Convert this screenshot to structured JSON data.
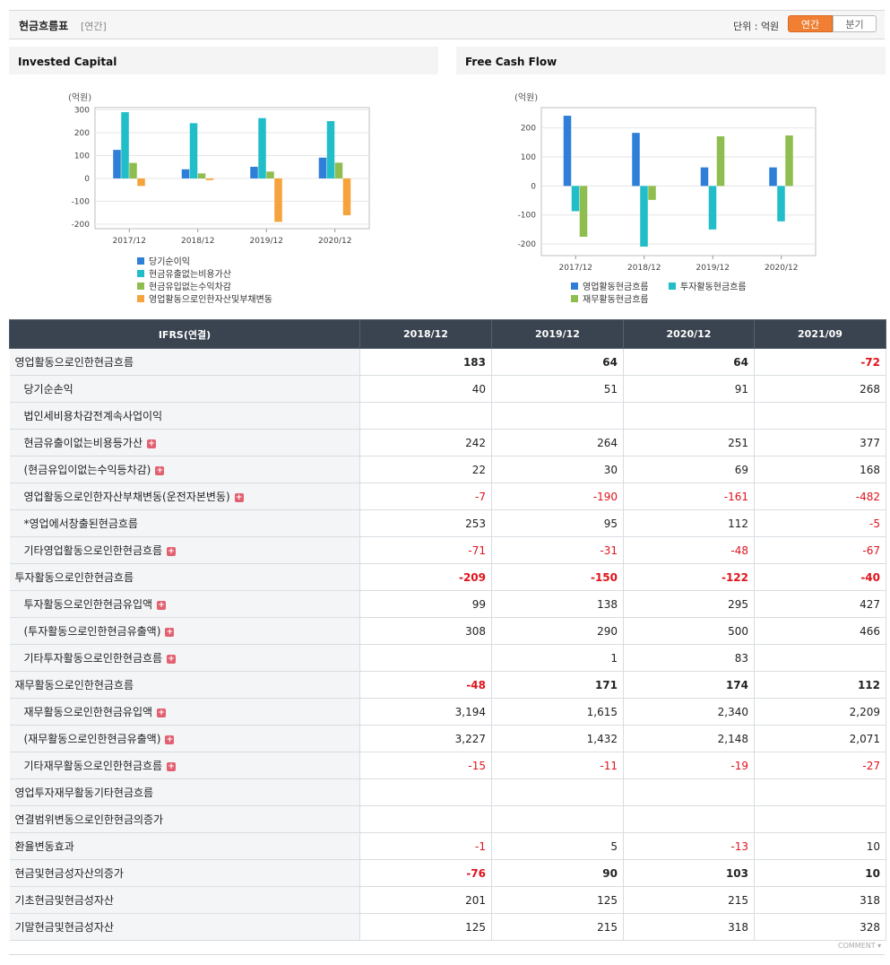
{
  "header": {
    "title": "현금흐름표",
    "period": "[연간]",
    "unit_label": "단위 : 억원",
    "tab_annual": "연간",
    "tab_quarter": "분기"
  },
  "colors": {
    "blue": "#2f7ed8",
    "teal": "#21bec9",
    "green": "#8fbd4f",
    "orange": "#f5a33a",
    "negative": "#e0131c",
    "header_bg": "#3a4450"
  },
  "charts": {
    "invested": {
      "title": "Invested Capital",
      "unit": "(억원)",
      "chart_data": {
        "type": "bar",
        "categories": [
          "2017/12",
          "2018/12",
          "2019/12",
          "2020/12"
        ],
        "ylim": [
          -220,
          310
        ],
        "yticks": [
          300,
          200,
          100,
          0,
          -100,
          -200
        ],
        "series": [
          {
            "name": "당기순이익",
            "color": "#2f7ed8",
            "values": [
              125,
              40,
              51,
              91
            ]
          },
          {
            "name": "현금유출없는비용가산",
            "color": "#21bec9",
            "values": [
              290,
              242,
              264,
              251
            ]
          },
          {
            "name": "현금유입없는수익차감",
            "color": "#8fbd4f",
            "values": [
              68,
              22,
              30,
              69
            ]
          },
          {
            "name": "영업활동으로인한자산및부채변동",
            "color": "#f5a33a",
            "values": [
              -33,
              -7,
              -190,
              -161
            ]
          }
        ],
        "grid": true,
        "legend": "bottom"
      }
    },
    "fcf": {
      "title": "Free Cash Flow",
      "unit": "(억원)",
      "chart_data": {
        "type": "bar",
        "categories": [
          "2017/12",
          "2018/12",
          "2019/12",
          "2020/12"
        ],
        "ylim": [
          -240,
          270
        ],
        "yticks": [
          200,
          100,
          0,
          -100,
          -200
        ],
        "series": [
          {
            "name": "영업활동현금흐름",
            "color": "#2f7ed8",
            "values": [
              242,
              183,
              64,
              64
            ]
          },
          {
            "name": "투자활동현금흐름",
            "color": "#21bec9",
            "values": [
              -87,
              -209,
              -150,
              -122
            ]
          },
          {
            "name": "재무활동현금흐름",
            "color": "#8fbd4f",
            "values": [
              -175,
              -48,
              171,
              174
            ]
          }
        ],
        "grid": true,
        "legend": "bottom"
      }
    }
  },
  "table": {
    "header": [
      "IFRS(연결)",
      "2018/12",
      "2019/12",
      "2020/12",
      "2021/09"
    ],
    "rows": [
      {
        "label": "영업활동으로인한현금흐름",
        "level": "main",
        "plus": false,
        "values": [
          "183",
          "64",
          "64",
          "-72"
        ]
      },
      {
        "label": "당기순손익",
        "level": "sub",
        "plus": false,
        "values": [
          "40",
          "51",
          "91",
          "268"
        ]
      },
      {
        "label": "법인세비용차감전계속사업이익",
        "level": "sub",
        "plus": false,
        "values": [
          "",
          "",
          "",
          ""
        ]
      },
      {
        "label": "현금유출이없는비용등가산",
        "level": "sub",
        "plus": true,
        "values": [
          "242",
          "264",
          "251",
          "377"
        ]
      },
      {
        "label": "(현금유입이없는수익등차감)",
        "level": "sub",
        "plus": true,
        "values": [
          "22",
          "30",
          "69",
          "168"
        ]
      },
      {
        "label": "영업활동으로인한자산부채변동(운전자본변동)",
        "level": "sub",
        "plus": true,
        "values": [
          "-7",
          "-190",
          "-161",
          "-482"
        ]
      },
      {
        "label": "*영업에서창출된현금흐름",
        "level": "sub",
        "plus": false,
        "values": [
          "253",
          "95",
          "112",
          "-5"
        ]
      },
      {
        "label": "기타영업활동으로인한현금흐름",
        "level": "sub",
        "plus": true,
        "values": [
          "-71",
          "-31",
          "-48",
          "-67"
        ]
      },
      {
        "label": "투자활동으로인한현금흐름",
        "level": "main",
        "plus": false,
        "values": [
          "-209",
          "-150",
          "-122",
          "-40"
        ]
      },
      {
        "label": "투자활동으로인한현금유입액",
        "level": "sub",
        "plus": true,
        "values": [
          "99",
          "138",
          "295",
          "427"
        ]
      },
      {
        "label": "(투자활동으로인한현금유출액)",
        "level": "sub",
        "plus": true,
        "values": [
          "308",
          "290",
          "500",
          "466"
        ]
      },
      {
        "label": "기타투자활동으로인한현금흐름",
        "level": "sub",
        "plus": true,
        "values": [
          "",
          "1",
          "83",
          ""
        ]
      },
      {
        "label": "재무활동으로인한현금흐름",
        "level": "main",
        "plus": false,
        "values": [
          "-48",
          "171",
          "174",
          "112"
        ]
      },
      {
        "label": "재무활동으로인한현금유입액",
        "level": "sub",
        "plus": true,
        "values": [
          "3,194",
          "1,615",
          "2,340",
          "2,209"
        ]
      },
      {
        "label": "(재무활동으로인한현금유출액)",
        "level": "sub",
        "plus": true,
        "values": [
          "3,227",
          "1,432",
          "2,148",
          "2,071"
        ]
      },
      {
        "label": "기타재무활동으로인한현금흐름",
        "level": "sub",
        "plus": true,
        "values": [
          "-15",
          "-11",
          "-19",
          "-27"
        ]
      },
      {
        "label": "영업투자재무활동기타현금흐름",
        "level": "top",
        "plus": false,
        "values": [
          "",
          "",
          "",
          ""
        ]
      },
      {
        "label": "연결범위변동으로인한현금의증가",
        "level": "top",
        "plus": false,
        "values": [
          "",
          "",
          "",
          ""
        ]
      },
      {
        "label": "환율변동효과",
        "level": "top",
        "plus": false,
        "values": [
          "-1",
          "5",
          "-13",
          "10"
        ]
      },
      {
        "label": "현금및현금성자산의증가",
        "level": "main",
        "plus": false,
        "values": [
          "-76",
          "90",
          "103",
          "10"
        ]
      },
      {
        "label": "기초현금및현금성자산",
        "level": "top",
        "plus": false,
        "values": [
          "201",
          "125",
          "215",
          "318"
        ]
      },
      {
        "label": "기말현금및현금성자산",
        "level": "top",
        "plus": false,
        "values": [
          "125",
          "215",
          "318",
          "328"
        ]
      }
    ]
  },
  "footer": {
    "comment": "COMMENT ▾"
  }
}
